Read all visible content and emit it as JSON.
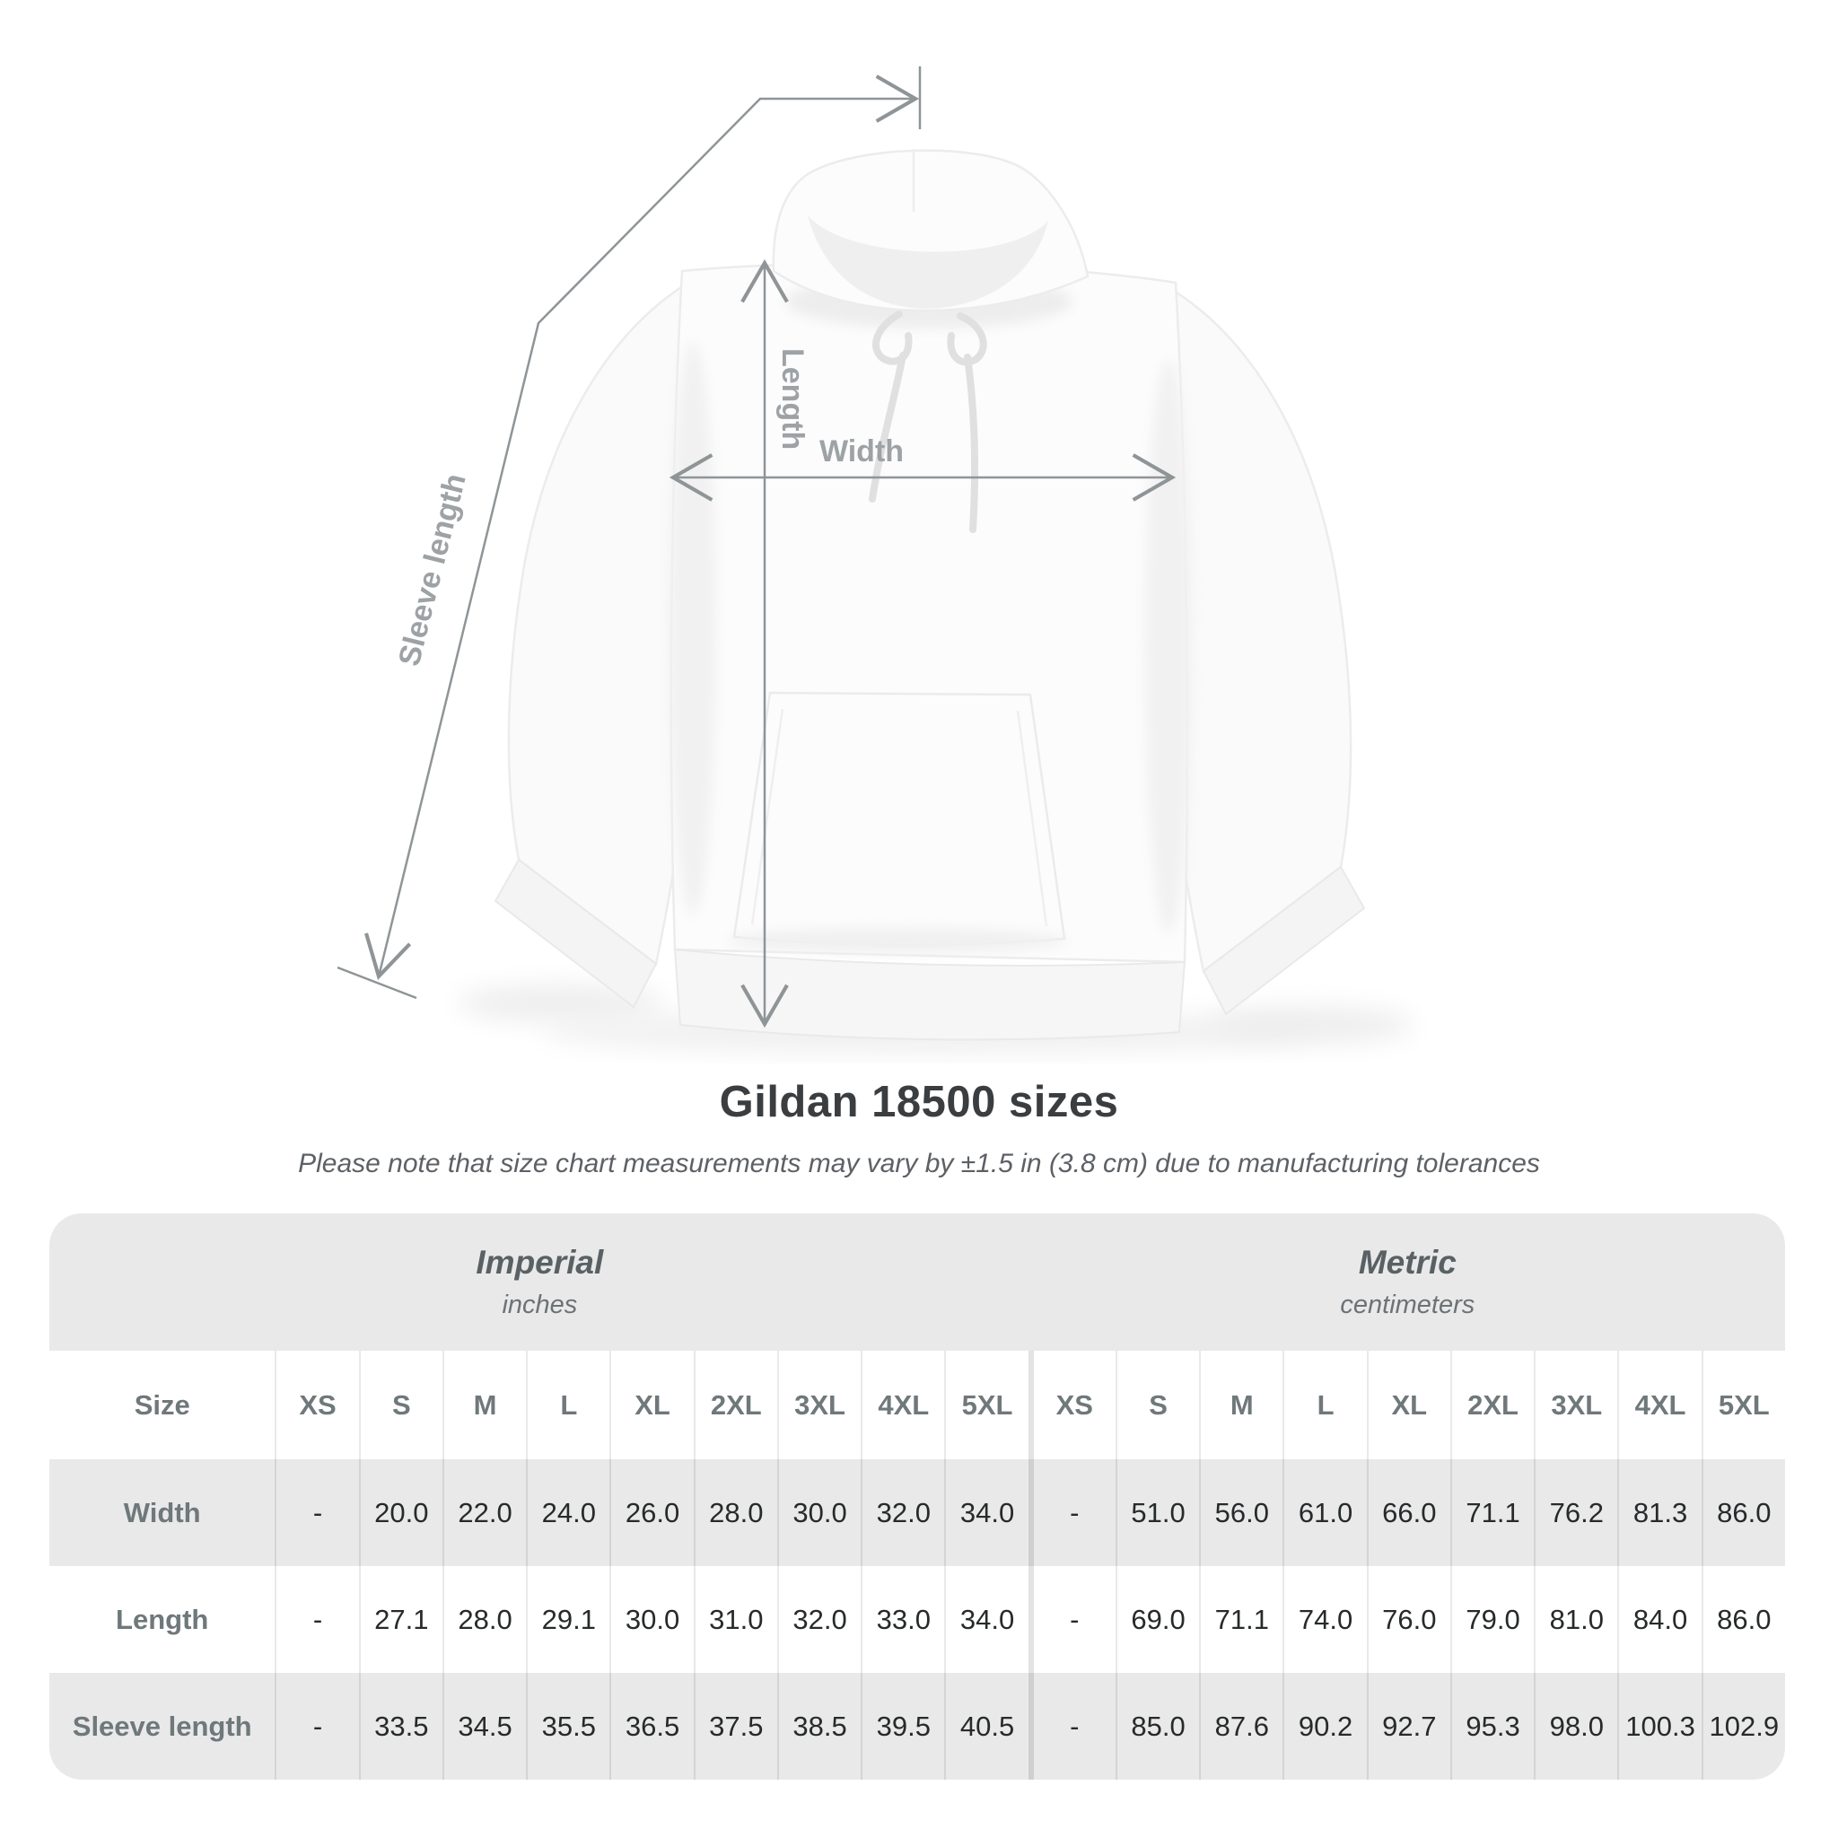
{
  "figure": {
    "width_label": "Width",
    "length_label": "Length",
    "sleeve_label": "Sleeve length",
    "garment": "white pullover hoodie (front view)"
  },
  "title": "Gildan 18500 sizes",
  "subtitle": "Please note that size chart measurements may vary by ±1.5 in (3.8 cm) due to manufacturing tolerances",
  "table": {
    "size_header": "Size",
    "unit_groups": [
      {
        "label": "Imperial",
        "sublabel": "inches"
      },
      {
        "label": "Metric",
        "sublabel": "centimeters"
      }
    ],
    "sizes": [
      "XS",
      "S",
      "M",
      "L",
      "XL",
      "2XL",
      "3XL",
      "4XL",
      "5XL"
    ],
    "rows": [
      {
        "label": "Width",
        "imperial": [
          "-",
          "20.0",
          "22.0",
          "24.0",
          "26.0",
          "28.0",
          "30.0",
          "32.0",
          "34.0"
        ],
        "metric": [
          "-",
          "51.0",
          "56.0",
          "61.0",
          "66.0",
          "71.1",
          "76.2",
          "81.3",
          "86.0"
        ]
      },
      {
        "label": "Length",
        "imperial": [
          "-",
          "27.1",
          "28.0",
          "29.1",
          "30.0",
          "31.0",
          "32.0",
          "33.0",
          "34.0"
        ],
        "metric": [
          "-",
          "69.0",
          "71.1",
          "74.0",
          "76.0",
          "79.0",
          "81.0",
          "84.0",
          "86.0"
        ]
      },
      {
        "label": "Sleeve length",
        "imperial": [
          "-",
          "33.5",
          "34.5",
          "35.5",
          "36.5",
          "37.5",
          "38.5",
          "39.5",
          "40.5"
        ],
        "metric": [
          "-",
          "85.0",
          "87.6",
          "90.2",
          "92.7",
          "95.3",
          "98.0",
          "100.3",
          "102.9"
        ]
      }
    ]
  },
  "colors": {
    "annotation_line": "#8f9497",
    "annotation_label": "#9da2a5",
    "table_band_bg": "#e9e9e9",
    "table_header_text": "#6f787a",
    "table_value_text": "#272a2b",
    "title_text": "#3a3e41",
    "subtitle_text": "#5d6165"
  }
}
